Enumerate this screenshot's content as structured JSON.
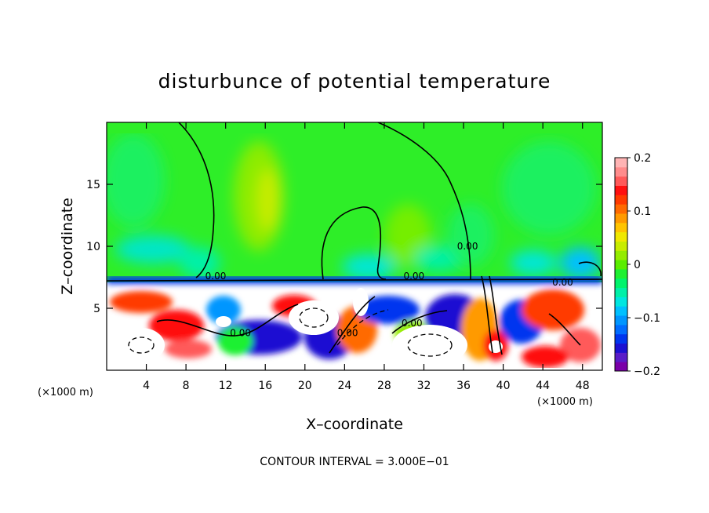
{
  "chart_data": {
    "type": "heatmap",
    "title": "disturbunce of potential temperature",
    "xlabel": "X–coordinate",
    "ylabel": "Z–coordinate",
    "x_unit_left": "(×1000 m)",
    "x_unit_right": "(×1000 m)",
    "xlim": [
      0,
      50
    ],
    "ylim": [
      0,
      20
    ],
    "x_ticks": [
      {
        "value": 4,
        "label": "4"
      },
      {
        "value": 8,
        "label": "8"
      },
      {
        "value": 12,
        "label": "12"
      },
      {
        "value": 16,
        "label": "16"
      },
      {
        "value": 20,
        "label": "20"
      },
      {
        "value": 24,
        "label": "24"
      },
      {
        "value": 28,
        "label": "28"
      },
      {
        "value": 32,
        "label": "32"
      },
      {
        "value": 36,
        "label": "36"
      },
      {
        "value": 40,
        "label": "40"
      },
      {
        "value": 44,
        "label": "44"
      },
      {
        "value": 48,
        "label": "48"
      }
    ],
    "y_ticks": [
      {
        "value": 5,
        "label": "5"
      },
      {
        "value": 10,
        "label": "10"
      },
      {
        "value": 15,
        "label": "15"
      }
    ],
    "colorbar": {
      "range": [
        -0.2,
        0.2
      ],
      "ticks": [
        {
          "value": 0.2,
          "label": "0.2"
        },
        {
          "value": 0.1,
          "label": "0.1"
        },
        {
          "value": 0,
          "label": "0"
        },
        {
          "value": -0.1,
          "label": "−0.1"
        },
        {
          "value": -0.2,
          "label": "−0.2"
        }
      ],
      "colors": [
        "#7a00a8",
        "#5a1cc8",
        "#1c10d2",
        "#0035ef",
        "#006cff",
        "#0096ff",
        "#00c0ff",
        "#00e6e0",
        "#00f0a8",
        "#00f46c",
        "#1ef032",
        "#5aee00",
        "#94ec00",
        "#c8ec00",
        "#f0e800",
        "#ffc400",
        "#ff9a00",
        "#ff6a00",
        "#ff3a00",
        "#ff1010",
        "#ff5a5a",
        "#ff8c8c",
        "#ffb4b4"
      ]
    },
    "contour_labels": [
      {
        "x": 11.0,
        "z": 7.6,
        "text": "0.00"
      },
      {
        "x": 31.0,
        "z": 7.6,
        "text": "0.00"
      },
      {
        "x": 46.0,
        "z": 7.1,
        "text": "0.00"
      },
      {
        "x": 13.5,
        "z": 3.0,
        "text": "0.00"
      },
      {
        "x": 24.3,
        "z": 3.0,
        "text": "0.00"
      },
      {
        "x": 30.8,
        "z": 3.8,
        "text": "0.00"
      },
      {
        "x": 36.4,
        "z": 10.0,
        "text": "0.00"
      }
    ],
    "contour_interval": "CONTOUR INTERVAL = 3.000E−01",
    "grid": false
  }
}
